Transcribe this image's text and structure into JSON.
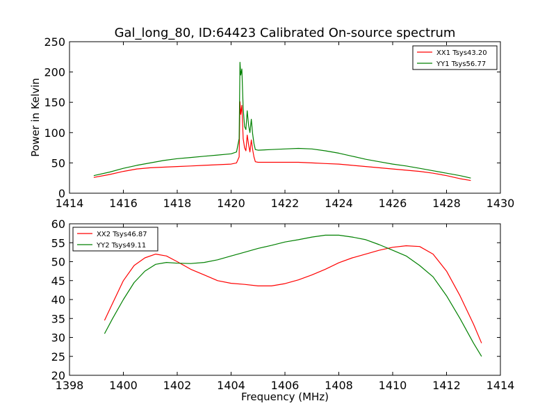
{
  "figure_title": "Gal_long_80, ID:64423 Calibrated On-source spectrum",
  "chart_data": [
    {
      "type": "line",
      "ylabel": "Power in Kelvin",
      "xlabel": "",
      "xlim": [
        1414,
        1430
      ],
      "ylim": [
        0,
        250
      ],
      "xticks": [
        1414,
        1416,
        1418,
        1420,
        1422,
        1424,
        1426,
        1428,
        1430
      ],
      "yticks": [
        0,
        50,
        100,
        150,
        200,
        250
      ],
      "legend_position": "top-right",
      "series": [
        {
          "name": "XX1 Tsys43.20",
          "color": "#ff0000",
          "x": [
            1414.9,
            1415.5,
            1416.0,
            1416.5,
            1417.0,
            1417.5,
            1418.0,
            1418.5,
            1419.0,
            1419.5,
            1420.0,
            1420.2,
            1420.3,
            1420.33,
            1420.36,
            1420.4,
            1420.45,
            1420.5,
            1420.55,
            1420.6,
            1420.65,
            1420.7,
            1420.75,
            1420.8,
            1420.85,
            1420.9,
            1421.0,
            1421.5,
            1422.0,
            1422.5,
            1423.0,
            1423.5,
            1424.0,
            1424.5,
            1425.0,
            1425.5,
            1426.0,
            1426.5,
            1427.0,
            1427.5,
            1428.0,
            1428.5,
            1428.9
          ],
          "y": [
            26,
            31,
            36,
            40,
            42,
            43,
            44,
            45,
            46,
            47,
            48,
            50,
            60,
            151,
            130,
            145,
            90,
            75,
            70,
            96,
            80,
            68,
            88,
            72,
            60,
            52,
            51,
            51,
            51,
            51,
            50,
            49,
            48,
            46,
            44,
            42,
            40,
            38,
            36,
            33,
            29,
            24,
            21
          ]
        },
        {
          "name": "YY1 Tsys56.77",
          "color": "#008000",
          "x": [
            1414.9,
            1415.5,
            1416.0,
            1416.5,
            1417.0,
            1417.5,
            1418.0,
            1418.5,
            1419.0,
            1419.5,
            1420.0,
            1420.2,
            1420.3,
            1420.33,
            1420.36,
            1420.4,
            1420.45,
            1420.5,
            1420.55,
            1420.6,
            1420.65,
            1420.7,
            1420.75,
            1420.8,
            1420.85,
            1420.9,
            1421.0,
            1421.5,
            1422.0,
            1422.5,
            1423.0,
            1423.5,
            1424.0,
            1424.5,
            1425.0,
            1425.5,
            1426.0,
            1426.5,
            1427.0,
            1427.5,
            1428.0,
            1428.5,
            1428.9
          ],
          "y": [
            29,
            35,
            41,
            46,
            50,
            54,
            57,
            59,
            61,
            63,
            65,
            68,
            90,
            216,
            195,
            205,
            140,
            110,
            105,
            136,
            112,
            100,
            122,
            98,
            82,
            72,
            71,
            72,
            73,
            74,
            73,
            70,
            66,
            61,
            56,
            52,
            48,
            45,
            41,
            37,
            33,
            29,
            25
          ]
        }
      ]
    },
    {
      "type": "line",
      "ylabel": "",
      "xlabel": "Frequency (MHz)",
      "xlim": [
        1398,
        1414
      ],
      "ylim": [
        20,
        60
      ],
      "xticks": [
        1398,
        1400,
        1402,
        1404,
        1406,
        1408,
        1410,
        1412,
        1414
      ],
      "yticks": [
        20,
        25,
        30,
        35,
        40,
        45,
        50,
        55,
        60
      ],
      "legend_position": "top-left",
      "series": [
        {
          "name": "XX2 Tsys46.87",
          "color": "#ff0000",
          "x": [
            1399.3,
            1399.6,
            1400.0,
            1400.4,
            1400.8,
            1401.2,
            1401.6,
            1402.0,
            1402.5,
            1403.0,
            1403.5,
            1404.0,
            1404.5,
            1405.0,
            1405.5,
            1406.0,
            1406.5,
            1407.0,
            1407.5,
            1408.0,
            1408.5,
            1409.0,
            1409.5,
            1410.0,
            1410.5,
            1411.0,
            1411.5,
            1412.0,
            1412.5,
            1413.0,
            1413.3
          ],
          "y": [
            34.5,
            39,
            45,
            49,
            51,
            52,
            51.5,
            50,
            48,
            46.5,
            45,
            44.3,
            44,
            43.6,
            43.6,
            44.2,
            45.2,
            46.5,
            48,
            49.7,
            51,
            52,
            53,
            53.8,
            54.2,
            54,
            52,
            47.5,
            41,
            33.5,
            28.5
          ]
        },
        {
          "name": "YY2 Tsys49.11",
          "color": "#008000",
          "x": [
            1399.3,
            1399.6,
            1400.0,
            1400.4,
            1400.8,
            1401.2,
            1401.6,
            1402.0,
            1402.5,
            1403.0,
            1403.5,
            1404.0,
            1404.5,
            1405.0,
            1405.5,
            1406.0,
            1406.5,
            1407.0,
            1407.5,
            1408.0,
            1408.5,
            1409.0,
            1409.5,
            1410.0,
            1410.5,
            1411.0,
            1411.5,
            1412.0,
            1412.5,
            1413.0,
            1413.3
          ],
          "y": [
            31,
            35,
            40,
            44.5,
            47.5,
            49.3,
            49.8,
            49.6,
            49.5,
            49.8,
            50.5,
            51.5,
            52.5,
            53.5,
            54.3,
            55.2,
            55.8,
            56.5,
            57,
            57,
            56.5,
            55.8,
            54.5,
            53,
            51.5,
            49,
            46,
            41,
            35,
            28.5,
            25
          ]
        }
      ]
    }
  ]
}
